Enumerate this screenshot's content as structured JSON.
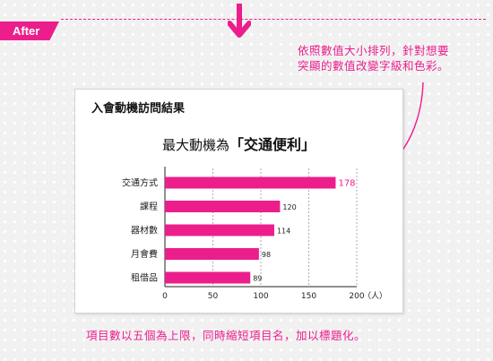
{
  "after_tag": "After",
  "notes": {
    "top_line1": "依照數值大小排列，針對想要",
    "top_line2": "突顯的數值改變字級和色彩。",
    "bottom": "項目數以五個為上限，同時縮短項目名，加以標題化。"
  },
  "card": {
    "title": "入會動機訪問結果",
    "chart_title_prefix": "最大動機為",
    "chart_title_emphasis": "「交通便利」"
  },
  "chart_data": {
    "type": "bar",
    "orientation": "horizontal",
    "categories": [
      "交通方式",
      "課程",
      "器材數",
      "月會費",
      "租借品"
    ],
    "values": [
      178,
      120,
      114,
      98,
      89
    ],
    "x_ticks": [
      0,
      50,
      100,
      150,
      200
    ],
    "x_unit": "（人）",
    "xlim": [
      0,
      200
    ],
    "grid": "vertical dashed",
    "highlight_index": 0
  },
  "colors": {
    "accent": "#ec1e8c",
    "highlight_label": "#ec1e8c",
    "label": "#222222"
  }
}
